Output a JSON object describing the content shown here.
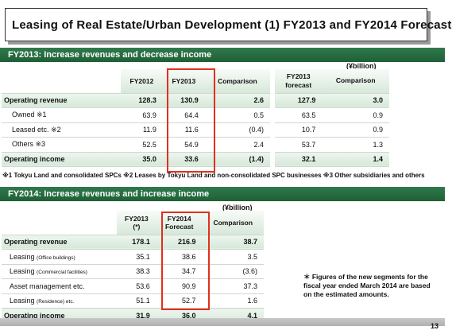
{
  "title": "Leasing of Real Estate/Urban Development (1) FY2013 and FY2014 Forecast",
  "section1": {
    "heading": "FY2013: Increase revenues and decrease income",
    "unit": "(¥billion)",
    "headers": [
      "FY2012",
      "FY2013",
      "Comparison"
    ],
    "forecast_header_line1": "FY2013",
    "forecast_header_line2": "forecast",
    "forecast_comparison_header": "Comparison",
    "rows": [
      {
        "label": "Operating revenue",
        "fy2012": "128.3",
        "fy2013": "130.9",
        "comparison": "2.6",
        "forecast": "127.9",
        "fc_comparison": "3.0"
      },
      {
        "label": "Owned ※1",
        "fy2012": "63.9",
        "fy2013": "64.4",
        "comparison": "0.5",
        "forecast": "63.5",
        "fc_comparison": "0.9"
      },
      {
        "label": "Leased etc. ※2",
        "fy2012": "11.9",
        "fy2013": "11.6",
        "comparison": "(0.4)",
        "forecast": "10.7",
        "fc_comparison": "0.9"
      },
      {
        "label": "Others ※3",
        "fy2012": "52.5",
        "fy2013": "54.9",
        "comparison": "2.4",
        "forecast": "53.7",
        "fc_comparison": "1.3"
      },
      {
        "label": "Operating income",
        "fy2012": "35.0",
        "fy2013": "33.6",
        "comparison": "(1.4)",
        "forecast": "32.1",
        "fc_comparison": "1.4"
      }
    ],
    "footnote": "※1 Tokyu Land and consolidated SPCs  ※2 Leases by Tokyu Land and non-consolidated SPC businesses  ※3 Other subsidiaries and others"
  },
  "section2": {
    "heading": "FY2014: Increase revenues and increase income",
    "unit": "(¥billion)",
    "col1_line1": "FY2013",
    "col1_line2": "(*)",
    "col2_line1": "FY2014",
    "col2_line2": "Forecast",
    "col3": "Comparison",
    "rows": [
      {
        "label": "Operating revenue",
        "sub": "",
        "fy2013": "178.1",
        "fy2014": "216.9",
        "comparison": "38.7"
      },
      {
        "label": "Leasing",
        "sub": "(Office buildings)",
        "fy2013": "35.1",
        "fy2014": "38.6",
        "comparison": "3.5"
      },
      {
        "label": "Leasing",
        "sub": "(Commercial facilities)",
        "fy2013": "38.3",
        "fy2014": "34.7",
        "comparison": "(3.6)"
      },
      {
        "label": "Asset management etc.",
        "sub": "",
        "fy2013": "53.6",
        "fy2014": "90.9",
        "comparison": "37.3"
      },
      {
        "label": "Leasing",
        "sub": "(Residence) etc.",
        "fy2013": "51.1",
        "fy2014": "52.7",
        "comparison": "1.6"
      },
      {
        "label": "Operating income",
        "sub": "",
        "fy2013": "31.9",
        "fy2014": "36.0",
        "comparison": "4.1"
      }
    ],
    "note": "＊ Figures of the new segments for the fiscal year ended March 2014 are based on the estimated amounts."
  },
  "page_number": "13",
  "colors": {
    "section_bar": "#2f7a4c",
    "highlight": "#e0301e"
  }
}
